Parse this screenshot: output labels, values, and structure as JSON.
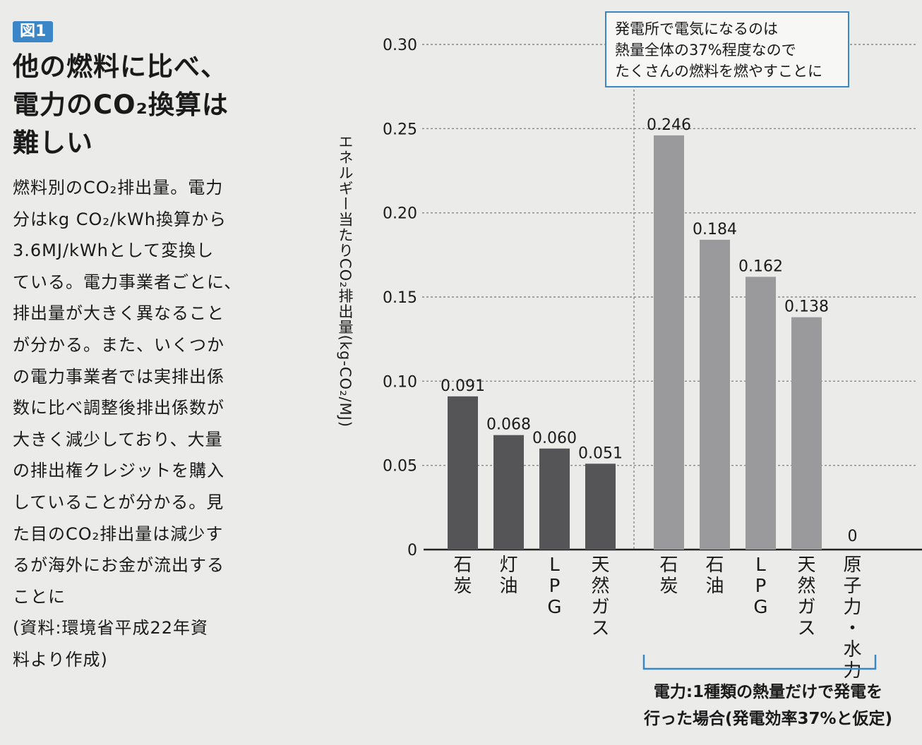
{
  "figure_badge": "図1",
  "headline": "他の燃料に比べ、\n電力のCO₂換算は\n難しい",
  "body": "燃料別のCO₂排出量。電力\n分はkg CO₂/kWh換算から\n3.6MJ/kWhとして変換し\nている。電力事業者ごとに、\n排出量が大きく異なること\nが分かる。また、いくつか\nの電力事業者では実排出係\n数に比べ調整後排出係数が\n大きく減少しており、大量\nの排出権クレジットを購入\nしていることが分かる。見\nた目のCO₂排出量は減少す\nるが海外にお金が流出する\nことに",
  "source": "(資料:環境省平成22年資\n料より作成)",
  "callout": "発電所で電気になるのは\n熱量全体の37%程度なので\nたくさんの燃料を燃やすことに",
  "electric_note": "電力:1種類の熱量だけで発電を\n行った場合(発電効率37%と仮定)",
  "colors": {
    "bar_direct": "#555558",
    "bar_electric": "#9a9a9d",
    "grid": "#888888",
    "accent": "#3b86c6"
  },
  "chart_data": {
    "type": "bar",
    "ylabel": "エネルギー当たりCO₂排出量(kg-CO₂/MJ)",
    "ylim": [
      0,
      0.3
    ],
    "yticks": [
      "0",
      "0.05",
      "0.10",
      "0.15",
      "0.20",
      "0.25",
      "0.30"
    ],
    "grid": true,
    "groups": [
      {
        "name": "",
        "categories": [
          "石炭",
          "灯油",
          "LPG",
          "天然ガス"
        ],
        "values": [
          0.091,
          0.068,
          0.06,
          0.051
        ],
        "value_labels": [
          "0.091",
          "0.068",
          "0.060",
          "0.051"
        ]
      },
      {
        "name": "電力:1種類の熱量だけで発電を行った場合(発電効率37%と仮定)",
        "categories": [
          "石炭",
          "石油",
          "LPG",
          "天然ガス",
          "原子力・水力"
        ],
        "values": [
          0.246,
          0.184,
          0.162,
          0.138,
          0
        ],
        "value_labels": [
          "0.246",
          "0.184",
          "0.162",
          "0.138",
          "0"
        ]
      }
    ]
  }
}
